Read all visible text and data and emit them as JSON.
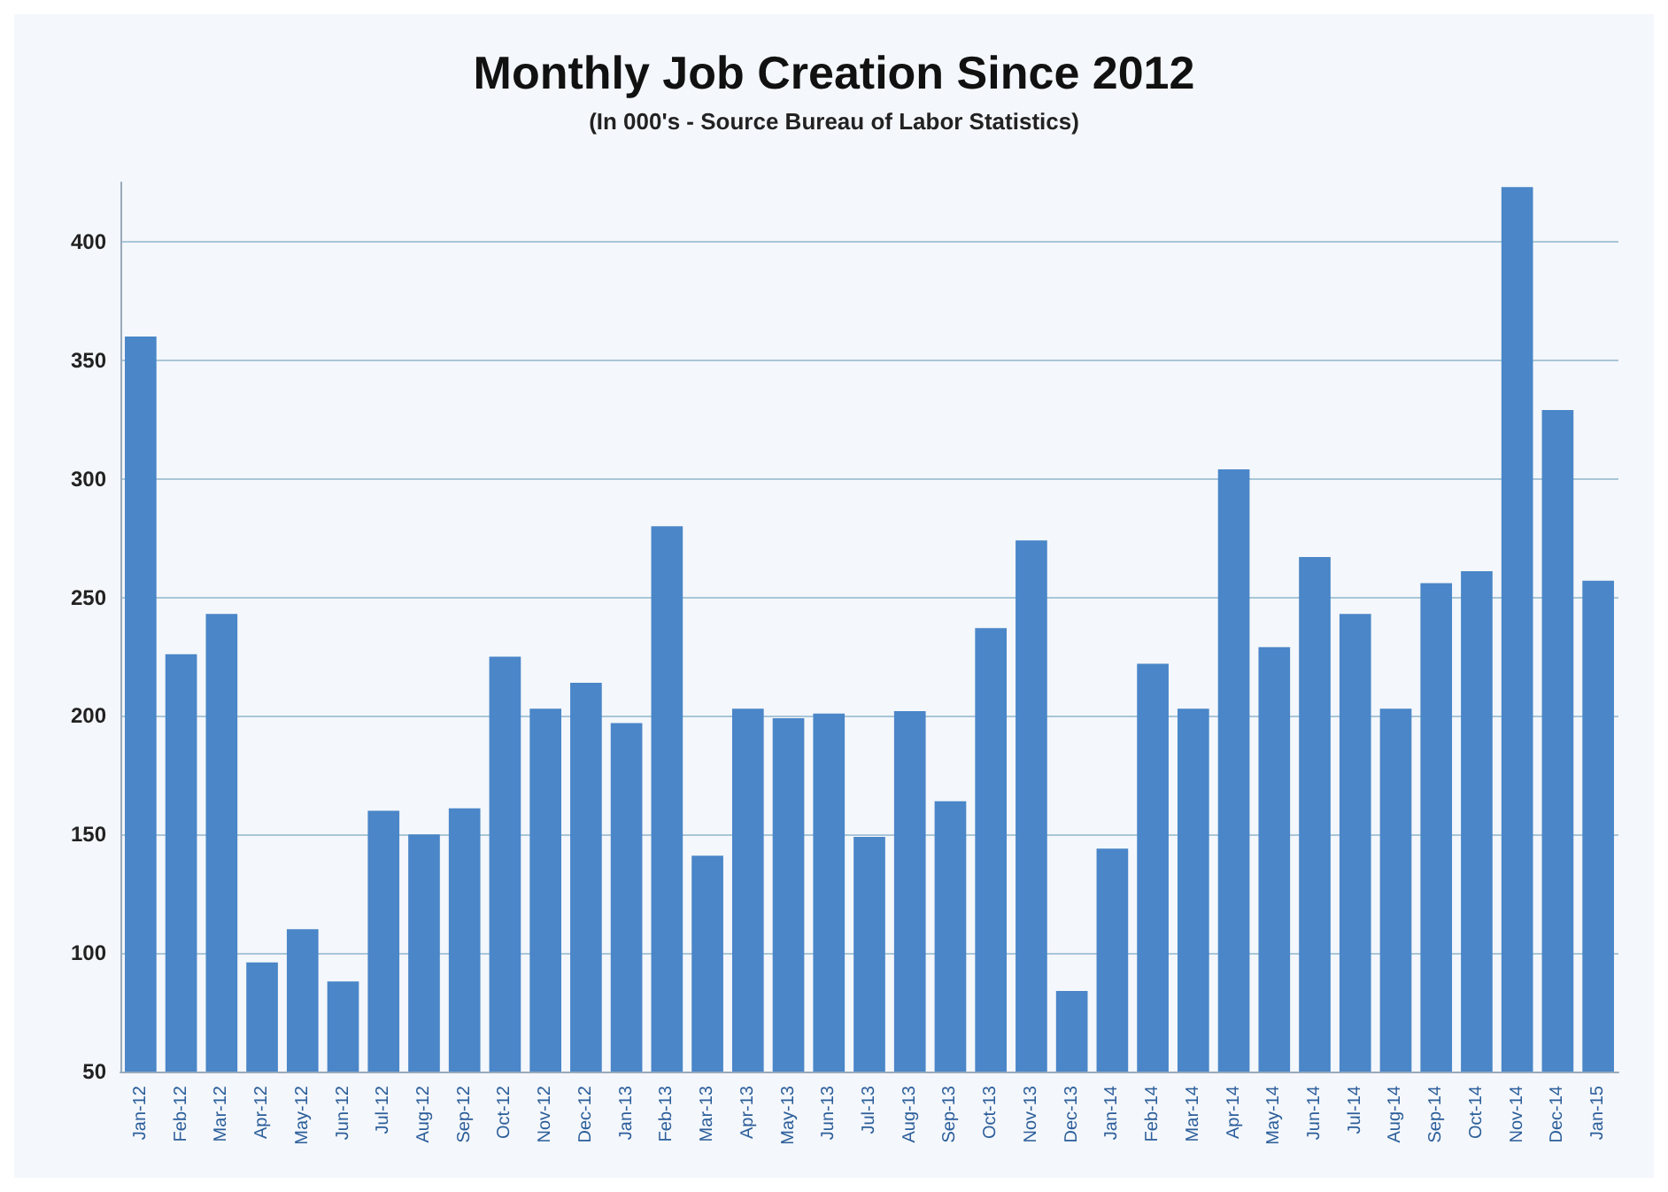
{
  "chart_data": {
    "type": "bar",
    "title": "Monthly Job Creation Since 2012",
    "subtitle": "(In 000's - Source Bureau of Labor Statistics)",
    "categories": [
      "Jan-12",
      "Feb-12",
      "Mar-12",
      "Apr-12",
      "May-12",
      "Jun-12",
      "Jul-12",
      "Aug-12",
      "Sep-12",
      "Oct-12",
      "Nov-12",
      "Dec-12",
      "Jan-13",
      "Feb-13",
      "Mar-13",
      "Apr-13",
      "May-13",
      "Jun-13",
      "Jul-13",
      "Aug-13",
      "Sep-13",
      "Oct-13",
      "Nov-13",
      "Dec-13",
      "Jan-14",
      "Feb-14",
      "Mar-14",
      "Apr-14",
      "May-14",
      "Jun-14",
      "Jul-14",
      "Aug-14",
      "Sep-14",
      "Oct-14",
      "Nov-14",
      "Dec-14",
      "Jan-15"
    ],
    "values": [
      360,
      226,
      243,
      96,
      110,
      88,
      160,
      150,
      161,
      225,
      203,
      214,
      197,
      280,
      141,
      203,
      199,
      201,
      149,
      202,
      164,
      237,
      274,
      84,
      144,
      222,
      203,
      304,
      229,
      267,
      243,
      203,
      256,
      261,
      423,
      329,
      257
    ],
    "color": "#4a86c8",
    "ylim": [
      50,
      425
    ],
    "yticks": [
      50,
      100,
      150,
      200,
      250,
      300,
      350,
      400
    ],
    "grid": "y"
  }
}
